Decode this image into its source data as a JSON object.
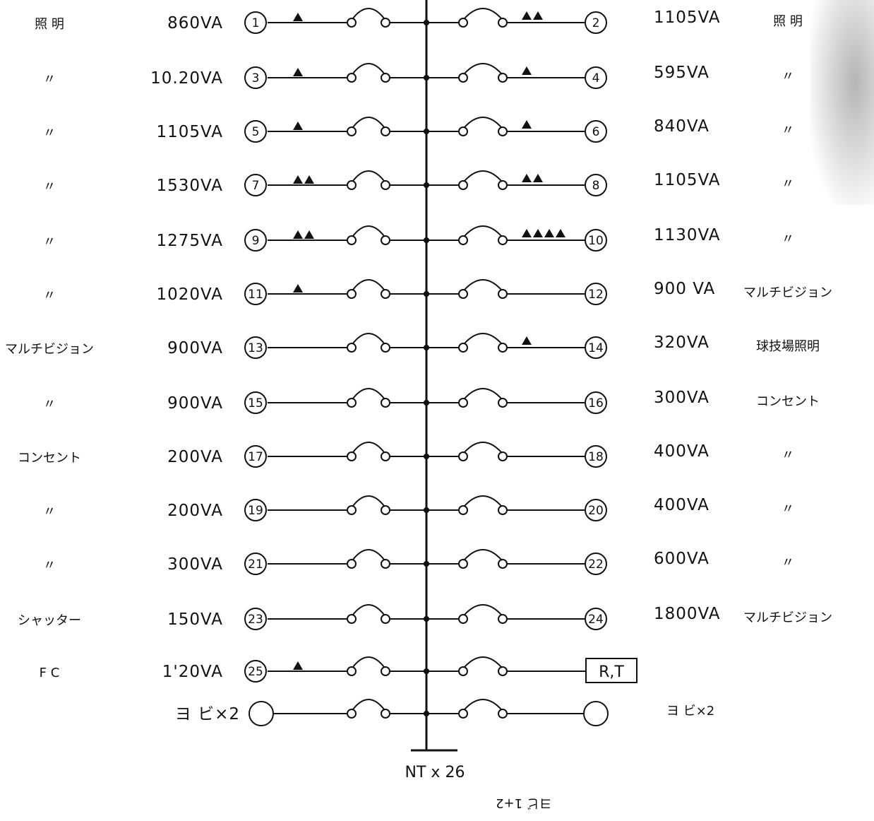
{
  "left_rows": [
    {
      "num": "1",
      "va": "860VA",
      "label": "照 明",
      "tri": 1
    },
    {
      "num": "3",
      "va": "10.20VA",
      "label": "〃",
      "tri": 1
    },
    {
      "num": "5",
      "va": "1105VA",
      "label": "〃",
      "tri": 1
    },
    {
      "num": "7",
      "va": "1530VA",
      "label": "〃",
      "tri": 2
    },
    {
      "num": "9",
      "va": "1275VA",
      "label": "〃",
      "tri": 2
    },
    {
      "num": "11",
      "va": "1020VA",
      "label": "〃",
      "tri": 1
    },
    {
      "num": "13",
      "va": "900VA",
      "label": "マルチビジョン",
      "tri": 0
    },
    {
      "num": "15",
      "va": "900VA",
      "label": "〃",
      "tri": 0
    },
    {
      "num": "17",
      "va": "200VA",
      "label": "コンセント",
      "tri": 0
    },
    {
      "num": "19",
      "va": "200VA",
      "label": "〃",
      "tri": 0
    },
    {
      "num": "21",
      "va": "300VA",
      "label": "〃",
      "tri": 0
    },
    {
      "num": "23",
      "va": "150VA",
      "label": "シャッター",
      "tri": 0
    },
    {
      "num": "25",
      "va": "1'20VA",
      "label": "F C",
      "tri": 1
    },
    {
      "num": "",
      "va": "ヨ ビ×2",
      "label": "",
      "tri": 0
    }
  ],
  "right_rows": [
    {
      "num": "2",
      "va": "1105VA",
      "label": "照 明",
      "tri": 2
    },
    {
      "num": "4",
      "va": "595VA",
      "label": "〃",
      "tri": 1
    },
    {
      "num": "6",
      "va": "840VA",
      "label": "〃",
      "tri": 1
    },
    {
      "num": "8",
      "va": "1105VA",
      "label": "〃",
      "tri": 2
    },
    {
      "num": "10",
      "va": "1130VA",
      "label": "〃",
      "tri": 4
    },
    {
      "num": "12",
      "va": "900 VA",
      "label": "マルチビジョン",
      "tri": 0
    },
    {
      "num": "14",
      "va": "320VA",
      "label": "球技場照明",
      "tri": 1
    },
    {
      "num": "16",
      "va": "300VA",
      "label": "コンセント",
      "tri": 0
    },
    {
      "num": "18",
      "va": "400VA",
      "label": "〃",
      "tri": 0
    },
    {
      "num": "20",
      "va": "400VA",
      "label": "〃",
      "tri": 0
    },
    {
      "num": "22",
      "va": "600VA",
      "label": "〃",
      "tri": 0
    },
    {
      "num": "24",
      "va": "1800VA",
      "label": "マルチビジョン",
      "tri": 0
    },
    {
      "num": "R,T",
      "va": "",
      "label": "",
      "tri": 0
    },
    {
      "num": "",
      "va": "ヨ ビ×2",
      "label": "",
      "tri": 0
    }
  ],
  "footer": {
    "nt": "NT x 26",
    "note": "ヨビ 1+2"
  },
  "colors": {
    "ink": "#111111",
    "paper": "#ffffff"
  }
}
